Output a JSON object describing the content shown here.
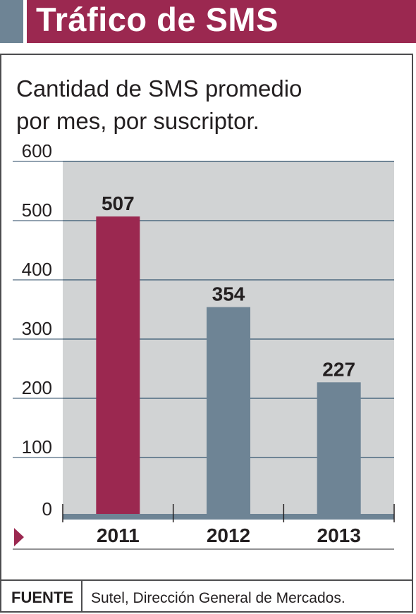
{
  "header": {
    "title": "Tráfico de SMS"
  },
  "subtitle_lines": [
    "Cantidad de SMS promedio",
    "por mes, por suscriptor."
  ],
  "source": {
    "label": "FUENTE",
    "text": "Sutel, Dirección General de Mercados."
  },
  "colors": {
    "brand": "#9b2850",
    "bar_highlight": "#9b2850",
    "bar_default": "#6e8495",
    "plot_bg": "#d1d3d4",
    "grid": "#6e8495"
  },
  "chart_data": {
    "type": "bar",
    "categories": [
      "2011",
      "2012",
      "2013"
    ],
    "values": [
      507,
      354,
      227
    ],
    "data_labels": [
      "507",
      "354",
      "227"
    ],
    "y_ticks": [
      "0",
      "100",
      "200",
      "300",
      "400",
      "500",
      "600"
    ],
    "ylim": [
      0,
      600
    ],
    "grid": true,
    "highlight_index": 0
  }
}
